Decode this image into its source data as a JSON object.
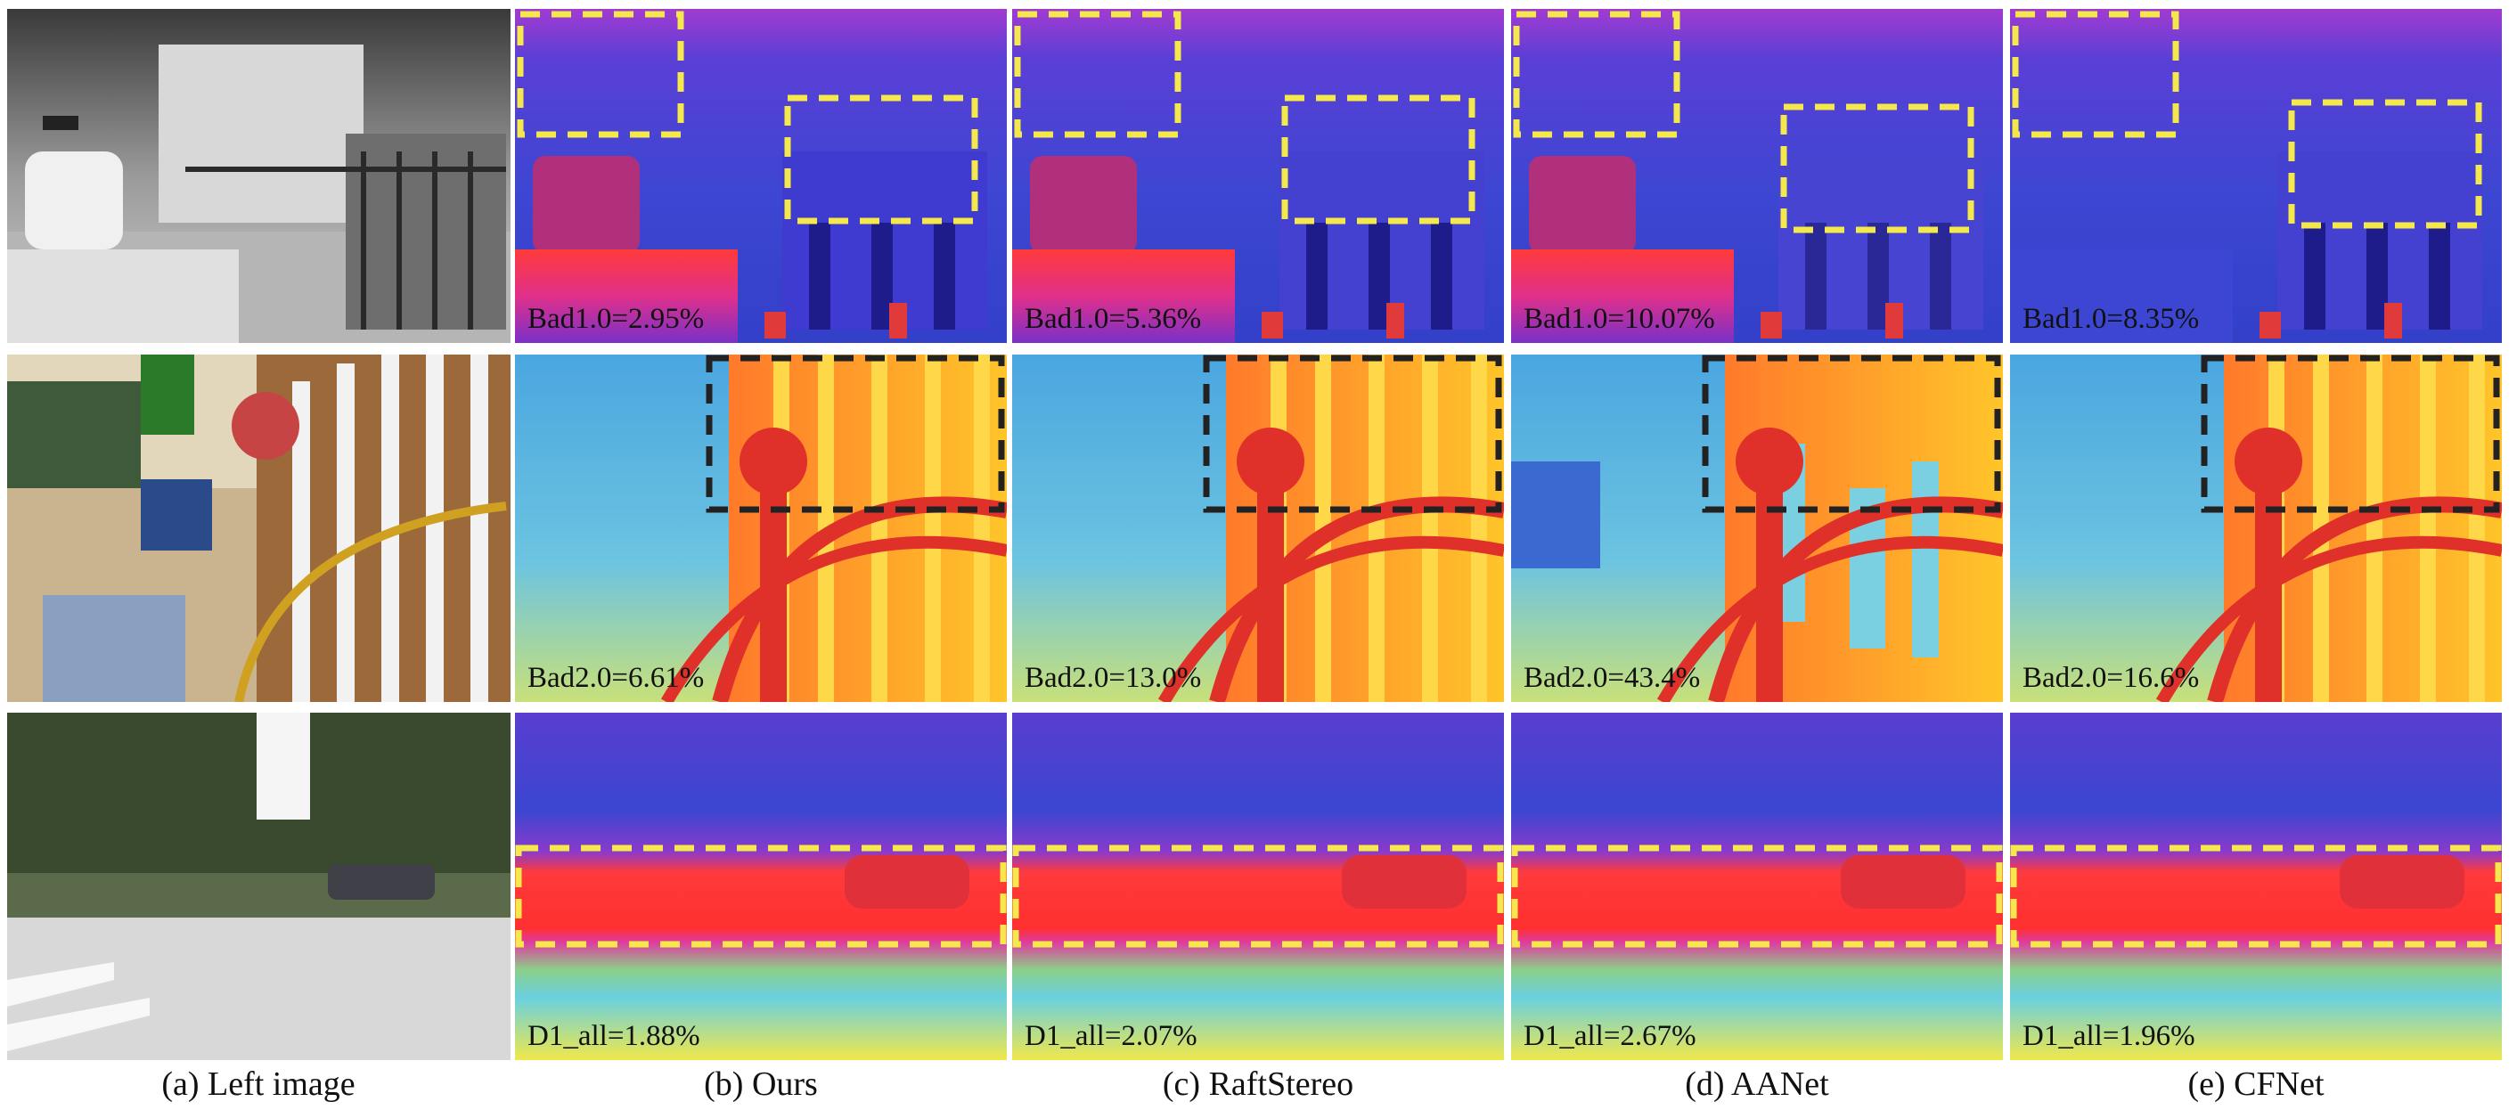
{
  "figure": {
    "columns": [
      {
        "caption": "(a) Left image"
      },
      {
        "caption": "(b) Ours"
      },
      {
        "caption": "(c) RaftStereo"
      },
      {
        "caption": "(d) AANet"
      },
      {
        "caption": "(e) CFNet"
      }
    ],
    "rows": [
      {
        "metrics": [
          "Bad1.0=2.95%",
          "Bad1.0=5.36%",
          "Bad1.0=10.07%",
          "Bad1.0=8.35%"
        ]
      },
      {
        "metrics": [
          "Bad2.0=6.61%",
          "Bad2.0=13.0%",
          "Bad2.0=43.4%",
          "Bad2.0=16.6%"
        ]
      },
      {
        "metrics": [
          "D1_all=1.88%",
          "D1_all=2.07%",
          "D1_all=2.67%",
          "D1_all=1.96%"
        ]
      }
    ],
    "highlight_colors": {
      "yellow": "#f5e84a",
      "black": "#222222"
    }
  }
}
